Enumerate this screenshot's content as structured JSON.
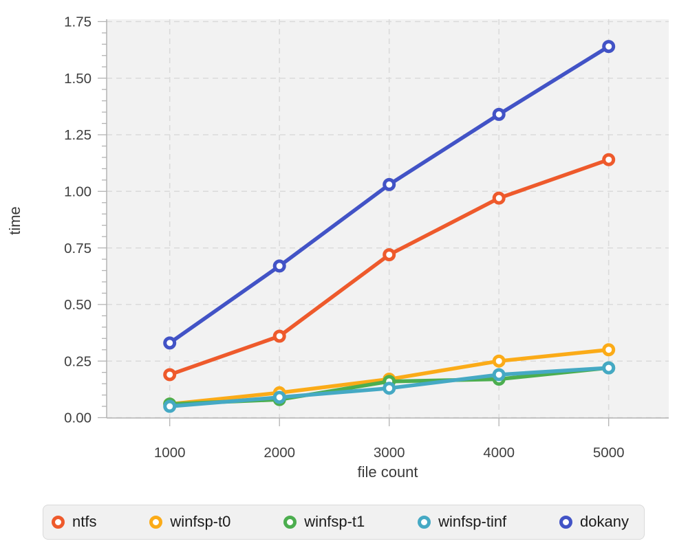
{
  "chart_data": {
    "type": "line",
    "title": "",
    "xlabel": "file count",
    "ylabel": "time",
    "x": [
      1000,
      2000,
      3000,
      4000,
      5000
    ],
    "series": [
      {
        "name": "ntfs",
        "color": "#ee5a2c",
        "values": [
          0.19,
          0.36,
          0.72,
          0.97,
          1.14
        ]
      },
      {
        "name": "winfsp-t0",
        "color": "#fbab18",
        "values": [
          0.06,
          0.11,
          0.17,
          0.25,
          0.3
        ]
      },
      {
        "name": "winfsp-t1",
        "color": "#4cae4f",
        "values": [
          0.06,
          0.08,
          0.16,
          0.17,
          0.22
        ]
      },
      {
        "name": "winfsp-tinf",
        "color": "#45a9c4",
        "values": [
          0.05,
          0.09,
          0.13,
          0.19,
          0.22
        ]
      },
      {
        "name": "dokany",
        "color": "#4253c6",
        "values": [
          0.33,
          0.67,
          1.03,
          1.34,
          1.64
        ]
      }
    ],
    "xticks": [
      "1000",
      "2000",
      "3000",
      "4000",
      "5000"
    ],
    "yticks": [
      "0.00",
      "0.25",
      "0.50",
      "0.75",
      "1.00",
      "1.25",
      "1.50",
      "1.75"
    ],
    "ytick_step": 0.25,
    "ytick_minor_step": 0.05,
    "xlim": [
      425,
      5550
    ],
    "ylim": [
      0,
      1.76
    ],
    "grid": true,
    "gridline_style": "dashed",
    "legend_position": "bottom",
    "colors": {
      "plot_background": "#f2f2f2",
      "page_background": "#ffffff",
      "gridline": "#dadada",
      "spine": "#b3b3b3",
      "tick_label": "#3f3f3f",
      "axis_label": "#3a3a3a",
      "legend_text": "#1b1b1b",
      "legend_background": "#f1f1f1",
      "legend_border": "#d9d9d9",
      "marker_fill": "#ffffff"
    }
  }
}
